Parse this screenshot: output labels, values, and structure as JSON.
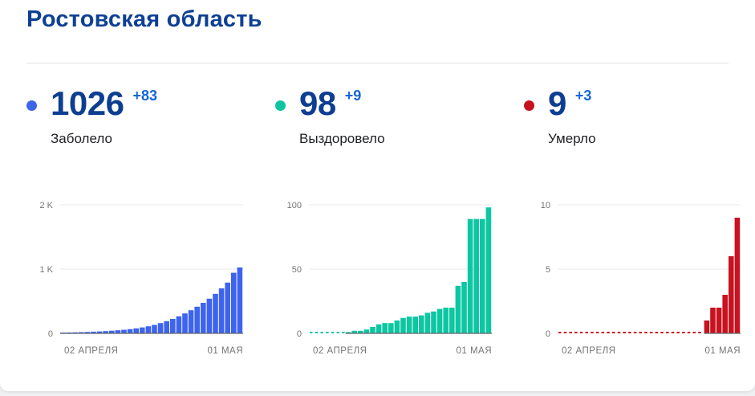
{
  "header": {
    "title": "Ростовская область"
  },
  "stats": [
    {
      "value": "1026",
      "delta": "+83",
      "label": "Заболело",
      "dot_color": "#3e64e8"
    },
    {
      "value": "98",
      "delta": "+9",
      "label": "Выздоровело",
      "dot_color": "#10c3a0"
    },
    {
      "value": "9",
      "delta": "+3",
      "label": "Умерло",
      "dot_color": "#c5121f"
    }
  ],
  "accent_colors": {
    "title_blue": "#0e4194",
    "number_navy": "#0d3e92",
    "delta_blue": "#1566d6",
    "axis_grey": "#757575"
  },
  "chart_data": [
    {
      "type": "bar",
      "metric": "infected",
      "title": "Заболело",
      "color": "#3e64ee",
      "grid": true,
      "y_max": 2000,
      "y_ticks": [
        {
          "value": 0,
          "label": "0"
        },
        {
          "value": 1000,
          "label": "1 K"
        },
        {
          "value": 2000,
          "label": "2 K"
        }
      ],
      "x_start_label": "02 АПРЕЛЯ",
      "x_end_label": "01 МАЯ",
      "values": [
        12,
        14,
        16,
        19,
        22,
        26,
        30,
        35,
        41,
        48,
        56,
        66,
        78,
        92,
        110,
        132,
        160,
        190,
        225,
        265,
        310,
        360,
        415,
        475,
        540,
        615,
        700,
        790,
        943,
        1026
      ]
    },
    {
      "type": "bar",
      "metric": "recovered",
      "title": "Выздоровело",
      "color": "#0dc7a3",
      "grid": true,
      "y_max": 100,
      "y_ticks": [
        {
          "value": 0,
          "label": "0"
        },
        {
          "value": 50,
          "label": "50"
        },
        {
          "value": 100,
          "label": "100"
        }
      ],
      "x_start_label": "02 АПРЕЛЯ",
      "x_end_label": "01 МАЯ",
      "values": [
        0,
        0,
        0,
        0,
        0,
        0,
        1,
        2,
        2,
        3,
        5,
        7,
        8,
        8,
        10,
        12,
        13,
        13,
        14,
        16,
        17,
        19,
        20,
        20,
        37,
        40,
        89,
        89,
        89,
        98
      ]
    },
    {
      "type": "bar",
      "metric": "deaths",
      "title": "Умерло",
      "color": "#c9121f",
      "grid": true,
      "y_max": 10,
      "y_ticks": [
        {
          "value": 0,
          "label": "0"
        },
        {
          "value": 5,
          "label": "5"
        },
        {
          "value": 10,
          "label": "10"
        }
      ],
      "x_start_label": "02 АПРЕЛЯ",
      "x_end_label": "01 МАЯ",
      "values": [
        0,
        0,
        0,
        0,
        0,
        0,
        0,
        0,
        0,
        0,
        0,
        0,
        0,
        0,
        0,
        0,
        0,
        0,
        0,
        0,
        0,
        0,
        0,
        0,
        1,
        2,
        2,
        3,
        6,
        9
      ]
    }
  ]
}
